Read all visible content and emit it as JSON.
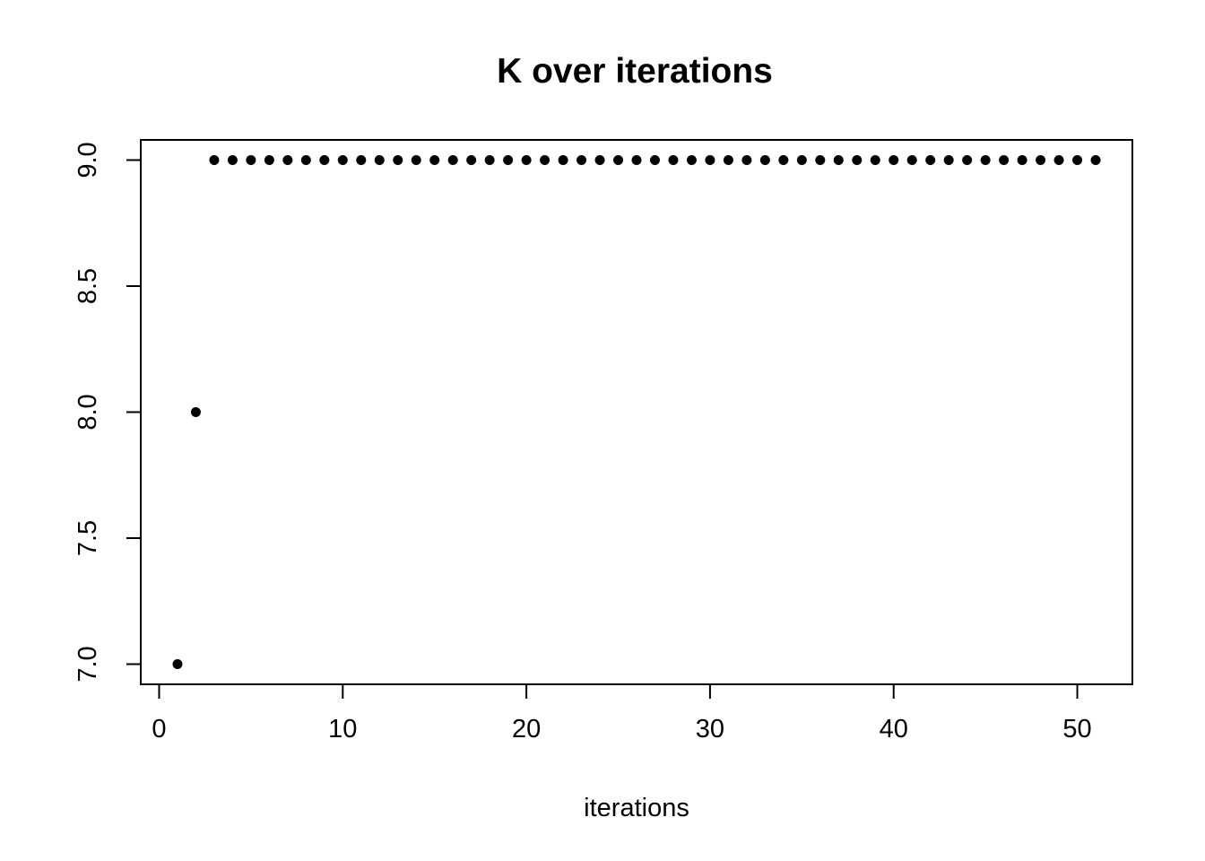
{
  "chart_data": {
    "type": "scatter",
    "title": "K over iterations",
    "xlabel": "iterations",
    "ylabel": "",
    "x": [
      1,
      2,
      3,
      4,
      5,
      6,
      7,
      8,
      9,
      10,
      11,
      12,
      13,
      14,
      15,
      16,
      17,
      18,
      19,
      20,
      21,
      22,
      23,
      24,
      25,
      26,
      27,
      28,
      29,
      30,
      31,
      32,
      33,
      34,
      35,
      36,
      37,
      38,
      39,
      40,
      41,
      42,
      43,
      44,
      45,
      46,
      47,
      48,
      49,
      50,
      51
    ],
    "y": [
      7,
      8,
      9,
      9,
      9,
      9,
      9,
      9,
      9,
      9,
      9,
      9,
      9,
      9,
      9,
      9,
      9,
      9,
      9,
      9,
      9,
      9,
      9,
      9,
      9,
      9,
      9,
      9,
      9,
      9,
      9,
      9,
      9,
      9,
      9,
      9,
      9,
      9,
      9,
      9,
      9,
      9,
      9,
      9,
      9,
      9,
      9,
      9,
      9,
      9,
      9
    ],
    "xticks": [
      0,
      10,
      20,
      30,
      40,
      50
    ],
    "yticks": [
      7.0,
      7.5,
      8.0,
      8.5,
      9.0
    ],
    "ytick_labels": [
      "7.0",
      "7.5",
      "8.0",
      "8.5",
      "9.0"
    ],
    "xlim": [
      -1,
      53
    ],
    "ylim": [
      6.92,
      9.08
    ],
    "grid": false,
    "legend": null,
    "marker": "filled-circle",
    "point_color": "#000000",
    "axis_color": "#000000",
    "background_color": "#ffffff"
  }
}
